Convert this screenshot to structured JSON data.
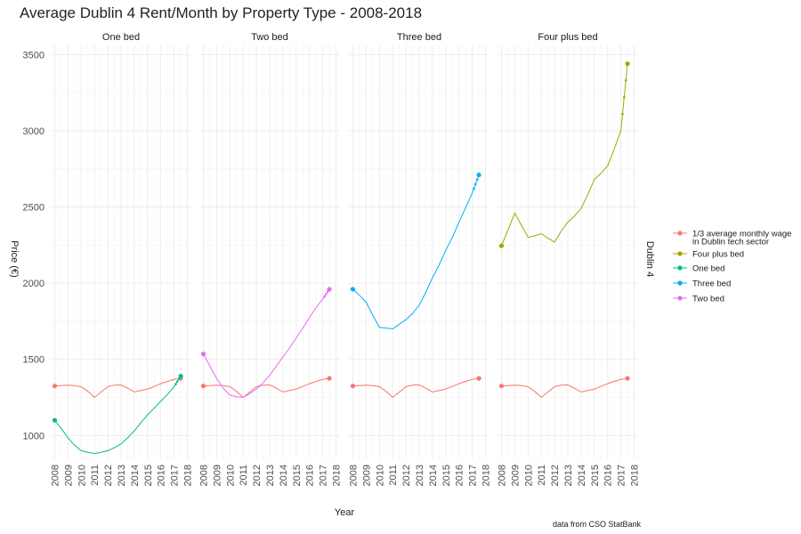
{
  "chart_data": {
    "type": "line",
    "title": "Average Dublin 4 Rent/Month by Property Type - 2008-2018",
    "xlabel": "Year",
    "ylabel": "Price (€)",
    "caption": "data from CSO StatBank",
    "facet_row_label": "Dublin 4",
    "facets": [
      "One bed",
      "Two bed",
      "Three bed",
      "Four plus bed"
    ],
    "xlim": [
      2007.7,
      2018.3
    ],
    "ylim": [
      850,
      3560
    ],
    "x_ticks": [
      "2008",
      "2009",
      "2010",
      "2011",
      "2012",
      "2013",
      "2014",
      "2015",
      "2016",
      "2017",
      "2018"
    ],
    "y_ticks": [
      "1000",
      "1500",
      "2000",
      "2500",
      "3000",
      "3500"
    ],
    "grid": true,
    "legend_position": "right",
    "legend": [
      {
        "label_lines": [
          "1/3 average monthly wage",
          "in Dublin tech sector"
        ],
        "color": "#F8766D"
      },
      {
        "label_lines": [
          "Four plus bed"
        ],
        "color": "#A3A500"
      },
      {
        "label_lines": [
          "One bed"
        ],
        "color": "#00BF7D"
      },
      {
        "label_lines": [
          "Three bed"
        ],
        "color": "#00B0F6"
      },
      {
        "label_lines": [
          "Two bed"
        ],
        "color": "#E76BF3"
      }
    ],
    "series": [
      {
        "name": "1/3 average monthly wage in Dublin tech sector",
        "color": "#F8766D",
        "all_facets": true,
        "x": [
          2008,
          2008.5,
          2009,
          2009.5,
          2010,
          2010.5,
          2011,
          2011.5,
          2012,
          2012.5,
          2013,
          2013.5,
          2014,
          2014.5,
          2015,
          2015.5,
          2016,
          2016.5,
          2017,
          2017.5
        ],
        "y": [
          1325,
          1328,
          1330,
          1327,
          1320,
          1290,
          1250,
          1285,
          1320,
          1330,
          1332,
          1310,
          1285,
          1295,
          1305,
          1322,
          1340,
          1355,
          1368,
          1375
        ]
      },
      {
        "name": "One bed",
        "facet": "One bed",
        "color": "#00BF7D",
        "x": [
          2008,
          2008.5,
          2009,
          2009.5,
          2010,
          2010.5,
          2011,
          2011.5,
          2012,
          2012.5,
          2013,
          2013.5,
          2014,
          2014.5,
          2015,
          2015.5,
          2016,
          2016.5,
          2017,
          2017.5
        ],
        "y": [
          1100,
          1045,
          985,
          935,
          900,
          890,
          882,
          890,
          900,
          920,
          945,
          985,
          1030,
          1085,
          1135,
          1180,
          1225,
          1270,
          1320,
          1390
        ]
      },
      {
        "name": "Two bed",
        "facet": "Two bed",
        "color": "#E76BF3",
        "x": [
          2008,
          2008.5,
          2009,
          2009.5,
          2010,
          2010.5,
          2011,
          2011.5,
          2012,
          2012.5,
          2013,
          2013.5,
          2014,
          2014.5,
          2015,
          2015.5,
          2016,
          2016.5,
          2017,
          2017.5
        ],
        "y": [
          1535,
          1455,
          1375,
          1310,
          1265,
          1255,
          1250,
          1275,
          1305,
          1345,
          1395,
          1455,
          1515,
          1575,
          1640,
          1705,
          1775,
          1840,
          1895,
          1960
        ]
      },
      {
        "name": "Three bed",
        "facet": "Three bed",
        "color": "#00B0F6",
        "x": [
          2008,
          2008.5,
          2009,
          2009.5,
          2010,
          2010.5,
          2011,
          2011.5,
          2012,
          2012.5,
          2013,
          2013.5,
          2014,
          2014.5,
          2015,
          2015.5,
          2016,
          2016.5,
          2017,
          2017.5
        ],
        "y": [
          1960,
          1920,
          1875,
          1790,
          1710,
          1705,
          1700,
          1730,
          1760,
          1800,
          1855,
          1940,
          2035,
          2120,
          2215,
          2300,
          2400,
          2495,
          2590,
          2710
        ]
      },
      {
        "name": "Four plus bed",
        "facet": "Four plus bed",
        "color": "#A3A500",
        "x": [
          2008,
          2008.5,
          2009,
          2009.5,
          2010,
          2010.5,
          2011,
          2011.5,
          2012,
          2012.5,
          2013,
          2013.5,
          2014,
          2014.5,
          2015,
          2015.5,
          2016,
          2016.5,
          2017,
          2017.5
        ],
        "y": [
          2245,
          2350,
          2460,
          2380,
          2300,
          2310,
          2325,
          2295,
          2270,
          2340,
          2400,
          2440,
          2490,
          2580,
          2680,
          2720,
          2770,
          2880,
          3000,
          3440
        ]
      }
    ]
  }
}
